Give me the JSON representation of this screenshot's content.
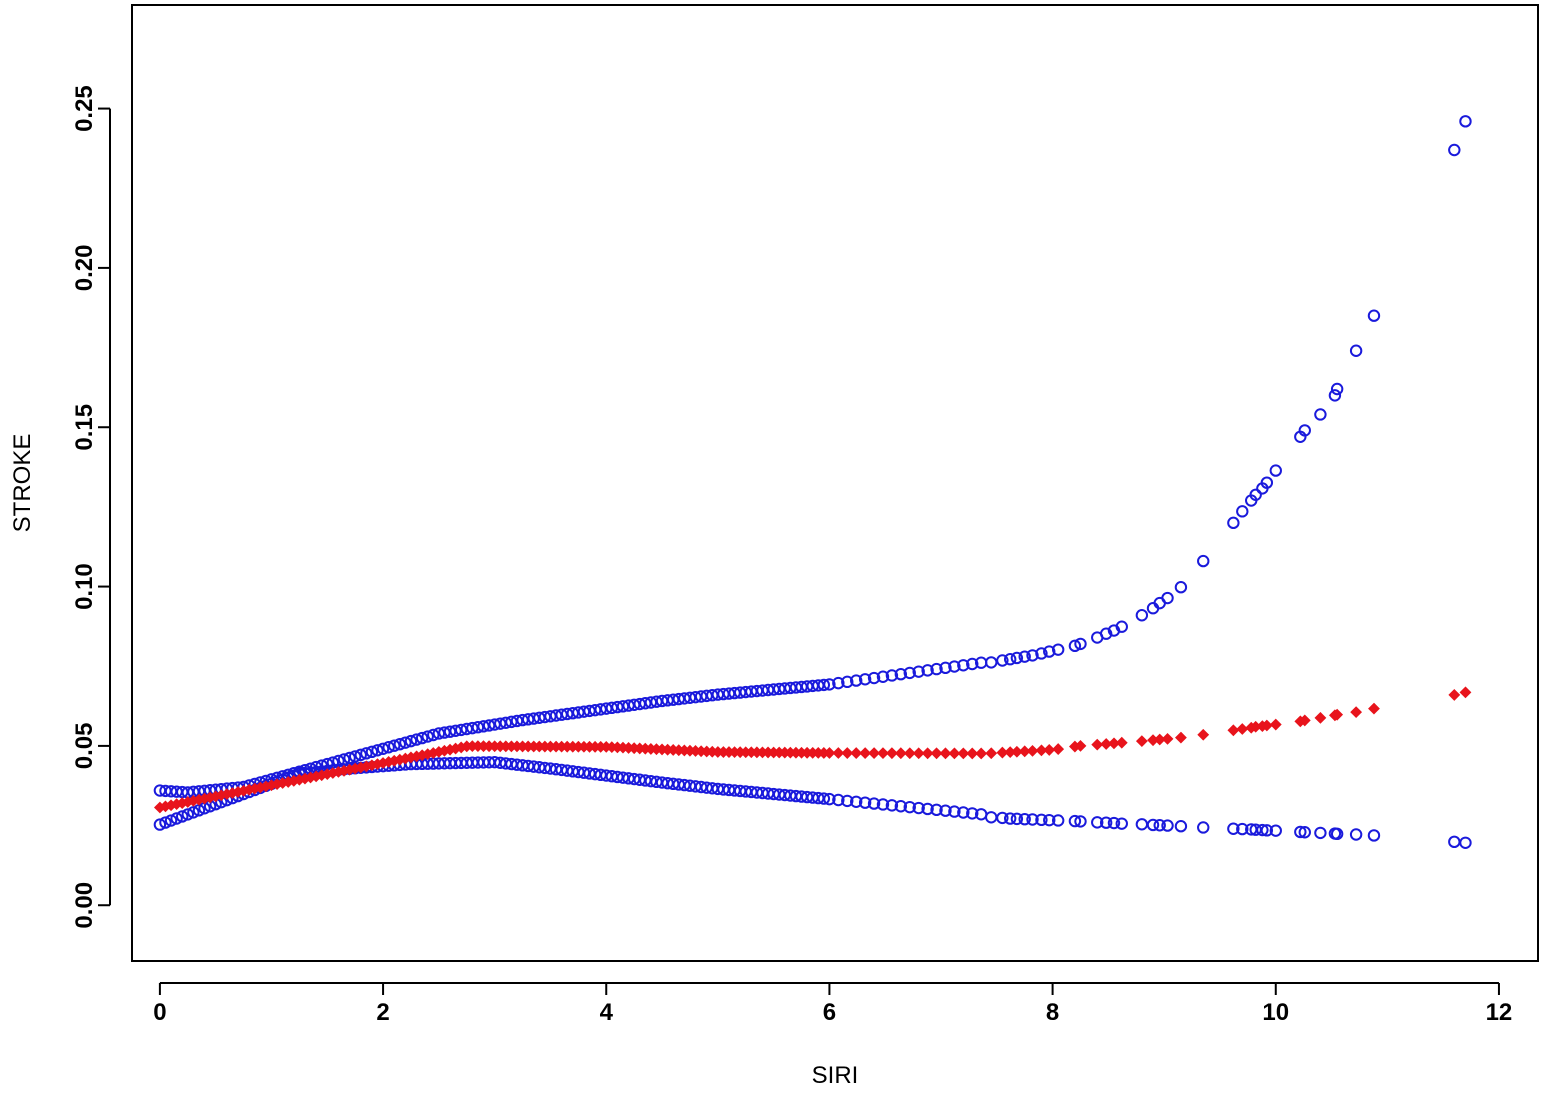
{
  "chart_data": {
    "type": "scatter",
    "title": "",
    "xlabel": "SIRI",
    "ylabel": "STROKE",
    "xlim": [
      -0.25,
      12.35
    ],
    "ylim": [
      -0.0175,
      0.2825
    ],
    "x_ticks": [
      0,
      2,
      4,
      6,
      8,
      10,
      12
    ],
    "y_ticks": [
      0.0,
      0.05,
      0.1,
      0.15,
      0.2,
      0.25
    ],
    "x_tick_labels": [
      "0",
      "2",
      "4",
      "6",
      "8",
      "10",
      "12"
    ],
    "y_tick_labels": [
      "0.00",
      "0.05",
      "0.10",
      "0.15",
      "0.20",
      "0.25"
    ],
    "grid": false,
    "legend": "none",
    "x": [
      0.0,
      0.05,
      0.1,
      0.15,
      0.2,
      0.25,
      0.3,
      0.35,
      0.4,
      0.45,
      0.5,
      0.55,
      0.6,
      0.65,
      0.7,
      0.75,
      0.8,
      0.85,
      0.9,
      0.95,
      1.0,
      1.05,
      1.1,
      1.15,
      1.2,
      1.25,
      1.3,
      1.35,
      1.4,
      1.45,
      1.5,
      1.55,
      1.6,
      1.65,
      1.7,
      1.75,
      1.8,
      1.85,
      1.9,
      1.95,
      2.0,
      2.05,
      2.1,
      2.15,
      2.2,
      2.25,
      2.3,
      2.35,
      2.4,
      2.45,
      2.5,
      2.55,
      2.6,
      2.65,
      2.7,
      2.75,
      2.8,
      2.85,
      2.9,
      2.95,
      3.0,
      3.05,
      3.1,
      3.15,
      3.2,
      3.25,
      3.3,
      3.35,
      3.4,
      3.45,
      3.5,
      3.55,
      3.6,
      3.65,
      3.7,
      3.75,
      3.8,
      3.85,
      3.9,
      3.95,
      4.0,
      4.05,
      4.1,
      4.15,
      4.2,
      4.25,
      4.3,
      4.35,
      4.4,
      4.45,
      4.5,
      4.55,
      4.6,
      4.65,
      4.7,
      4.75,
      4.8,
      4.85,
      4.9,
      4.95,
      5.0,
      5.05,
      5.1,
      5.15,
      5.2,
      5.25,
      5.3,
      5.35,
      5.4,
      5.45,
      5.5,
      5.55,
      5.6,
      5.65,
      5.7,
      5.75,
      5.8,
      5.85,
      5.9,
      5.95,
      6.0,
      6.08,
      6.16,
      6.24,
      6.32,
      6.4,
      6.48,
      6.56,
      6.64,
      6.72,
      6.8,
      6.88,
      6.96,
      7.04,
      7.12,
      7.2,
      7.28,
      7.36,
      7.45,
      7.55,
      7.62,
      7.68,
      7.75,
      7.82,
      7.9,
      7.97,
      8.05,
      8.2,
      8.25,
      8.4,
      8.48,
      8.55,
      8.62,
      8.8,
      8.9,
      8.96,
      9.03,
      9.15,
      9.35,
      9.62,
      9.7,
      9.78,
      9.82,
      9.88,
      9.92,
      10.0,
      10.22,
      10.26,
      10.4,
      10.53,
      10.55,
      10.72,
      10.88,
      11.6,
      11.7
    ],
    "series": [
      {
        "name": "",
        "marker": "filled-diamond",
        "color": "#e8141c",
        "values": [
          0.03067,
          0.03102,
          0.03137,
          0.03172,
          0.03206,
          0.03241,
          0.03276,
          0.03311,
          0.03346,
          0.03381,
          0.03416,
          0.03451,
          0.03486,
          0.0352,
          0.03555,
          0.0359,
          0.03625,
          0.0366,
          0.03695,
          0.0373,
          0.03765,
          0.038,
          0.03835,
          0.0387,
          0.03904,
          0.03939,
          0.03974,
          0.04009,
          0.04044,
          0.04079,
          0.04114,
          0.04149,
          0.04184,
          0.04219,
          0.04254,
          0.04288,
          0.04323,
          0.04358,
          0.04393,
          0.04428,
          0.04463,
          0.04498,
          0.04533,
          0.04568,
          0.04603,
          0.04638,
          0.04672,
          0.04707,
          0.04742,
          0.04777,
          0.04812,
          0.04847,
          0.04882,
          0.04917,
          0.04952,
          0.04987,
          0.04993,
          0.04992,
          0.04991,
          0.0499,
          0.04989,
          0.04988,
          0.04987,
          0.04986,
          0.04985,
          0.04984,
          0.04983,
          0.04982,
          0.04981,
          0.0498,
          0.04979,
          0.04978,
          0.04977,
          0.04976,
          0.04975,
          0.04974,
          0.04973,
          0.04972,
          0.04971,
          0.0497,
          0.04969,
          0.04961,
          0.04953,
          0.04945,
          0.04937,
          0.04929,
          0.04921,
          0.04913,
          0.04905,
          0.04897,
          0.04889,
          0.04881,
          0.04873,
          0.04865,
          0.04857,
          0.04849,
          0.04841,
          0.04833,
          0.04825,
          0.04817,
          0.04809,
          0.04807,
          0.04806,
          0.04804,
          0.04803,
          0.04801,
          0.048,
          0.04798,
          0.04796,
          0.04795,
          0.04793,
          0.04792,
          0.0479,
          0.04789,
          0.04787,
          0.04785,
          0.04784,
          0.04782,
          0.04781,
          0.04779,
          0.04778,
          0.04777,
          0.04776,
          0.04775,
          0.04774,
          0.04774,
          0.04773,
          0.04772,
          0.04771,
          0.0477,
          0.04769,
          0.04768,
          0.04768,
          0.04767,
          0.04766,
          0.04765,
          0.04764,
          0.04763,
          0.0477,
          0.0479,
          0.04804,
          0.04816,
          0.0483,
          0.04844,
          0.0486,
          0.04874,
          0.049,
          0.0498,
          0.05,
          0.0504,
          0.0506,
          0.0508,
          0.051,
          0.0515,
          0.0518,
          0.052,
          0.0522,
          0.0526,
          0.0535,
          0.0549,
          0.0553,
          0.0557,
          0.056,
          0.0562,
          0.0564,
          0.0567,
          0.0577,
          0.058,
          0.0588,
          0.0596,
          0.0598,
          0.0606,
          0.0617,
          0.066,
          0.0668
        ]
      },
      {
        "name": "",
        "marker": "open-circle",
        "color": "#1a1adc",
        "values": [
          0.036,
          0.03588,
          0.03576,
          0.03564,
          0.03552,
          0.0354,
          0.03557,
          0.03574,
          0.03591,
          0.03608,
          0.03625,
          0.03642,
          0.03659,
          0.03676,
          0.03693,
          0.0371,
          0.03758,
          0.03806,
          0.03854,
          0.03902,
          0.0395,
          0.03998,
          0.04046,
          0.04094,
          0.04142,
          0.0419,
          0.04238,
          0.04286,
          0.04334,
          0.04382,
          0.0443,
          0.04478,
          0.04526,
          0.04574,
          0.04622,
          0.0467,
          0.04718,
          0.04766,
          0.04814,
          0.04862,
          0.0491,
          0.04958,
          0.05006,
          0.05054,
          0.05102,
          0.0515,
          0.05198,
          0.05246,
          0.05294,
          0.05342,
          0.0539,
          0.05418,
          0.05446,
          0.05474,
          0.05502,
          0.0553,
          0.05558,
          0.05586,
          0.05614,
          0.05642,
          0.0567,
          0.05698,
          0.05726,
          0.05754,
          0.05782,
          0.0581,
          0.05834,
          0.05858,
          0.05882,
          0.05906,
          0.0593,
          0.05954,
          0.05978,
          0.06002,
          0.06026,
          0.0605,
          0.06074,
          0.06098,
          0.06122,
          0.06146,
          0.0617,
          0.06194,
          0.06218,
          0.06242,
          0.06266,
          0.0629,
          0.06314,
          0.06338,
          0.06362,
          0.06386,
          0.0641,
          0.0643,
          0.0645,
          0.0647,
          0.0649,
          0.0651,
          0.0653,
          0.0655,
          0.0657,
          0.0659,
          0.0661,
          0.06626,
          0.06642,
          0.06658,
          0.06674,
          0.0669,
          0.06706,
          0.06722,
          0.06738,
          0.06754,
          0.0677,
          0.06786,
          0.06802,
          0.06818,
          0.06834,
          0.0685,
          0.06866,
          0.06882,
          0.06898,
          0.06914,
          0.0693,
          0.0697,
          0.0701,
          0.0705,
          0.0709,
          0.0713,
          0.0717,
          0.0721,
          0.0725,
          0.0729,
          0.0733,
          0.0737,
          0.0741,
          0.0745,
          0.0749,
          0.0753,
          0.0757,
          0.0761,
          0.0762,
          0.0768,
          0.0772,
          0.0776,
          0.078,
          0.0784,
          0.079,
          0.0796,
          0.0802,
          0.0814,
          0.082,
          0.084,
          0.0852,
          0.0862,
          0.0874,
          0.091,
          0.0932,
          0.0948,
          0.0964,
          0.0998,
          0.108,
          0.12,
          0.1236,
          0.127,
          0.1288,
          0.1308,
          0.1326,
          0.1364,
          0.147,
          0.149,
          0.154,
          0.16,
          0.162,
          0.174,
          0.185,
          0.237,
          0.246
        ]
      },
      {
        "name": "",
        "marker": "open-circle",
        "color": "#1a1adc",
        "values": [
          0.0253,
          0.02594,
          0.02658,
          0.02722,
          0.02786,
          0.0285,
          0.02914,
          0.02978,
          0.03042,
          0.03106,
          0.0317,
          0.03234,
          0.03298,
          0.03362,
          0.03426,
          0.0349,
          0.03554,
          0.03618,
          0.03682,
          0.03746,
          0.0381,
          0.03874,
          0.03938,
          0.04002,
          0.04066,
          0.0413,
          0.04147,
          0.04164,
          0.04181,
          0.04198,
          0.04215,
          0.04232,
          0.04249,
          0.04266,
          0.04283,
          0.043,
          0.04313,
          0.04326,
          0.04339,
          0.04352,
          0.04365,
          0.04378,
          0.04391,
          0.04404,
          0.04417,
          0.0443,
          0.04434,
          0.04438,
          0.04442,
          0.04446,
          0.0445,
          0.04454,
          0.04458,
          0.04462,
          0.04466,
          0.0447,
          0.04474,
          0.04478,
          0.04482,
          0.04486,
          0.0449,
          0.0447,
          0.0445,
          0.0443,
          0.0441,
          0.0439,
          0.0437,
          0.0435,
          0.0433,
          0.0431,
          0.0429,
          0.04268,
          0.04246,
          0.04224,
          0.04202,
          0.0418,
          0.04158,
          0.04136,
          0.04114,
          0.04092,
          0.0407,
          0.04048,
          0.04026,
          0.04004,
          0.03982,
          0.0396,
          0.03938,
          0.03916,
          0.03894,
          0.03872,
          0.0385,
          0.0383,
          0.0381,
          0.0379,
          0.0377,
          0.0375,
          0.0373,
          0.0371,
          0.0369,
          0.0367,
          0.0365,
          0.03634,
          0.03618,
          0.03602,
          0.03586,
          0.0357,
          0.03554,
          0.03538,
          0.03522,
          0.03506,
          0.0349,
          0.03474,
          0.03458,
          0.03442,
          0.03426,
          0.0341,
          0.03394,
          0.03378,
          0.03362,
          0.03346,
          0.0333,
          0.03302,
          0.03274,
          0.03246,
          0.03218,
          0.0319,
          0.03162,
          0.03134,
          0.03106,
          0.03078,
          0.0305,
          0.03022,
          0.02994,
          0.02966,
          0.02938,
          0.0291,
          0.02882,
          0.02854,
          0.0276,
          0.0274,
          0.0272,
          0.0271,
          0.027,
          0.0269,
          0.0268,
          0.0267,
          0.0266,
          0.0264,
          0.0263,
          0.026,
          0.0259,
          0.0258,
          0.0256,
          0.0254,
          0.0252,
          0.0251,
          0.025,
          0.0248,
          0.0244,
          0.024,
          0.0239,
          0.0238,
          0.0237,
          0.0236,
          0.0235,
          0.0234,
          0.023,
          0.0229,
          0.0227,
          0.0225,
          0.0224,
          0.0222,
          0.0219,
          0.0199,
          0.0196
        ]
      }
    ]
  }
}
